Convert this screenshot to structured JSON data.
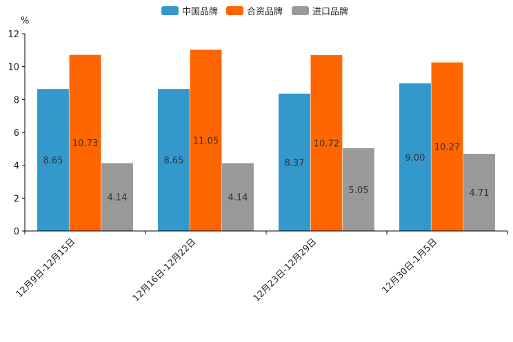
{
  "chart_data": {
    "type": "bar",
    "title": "",
    "ylabel": "%",
    "xlabel": "",
    "ylim": [
      0,
      12
    ],
    "yticks": [
      0,
      2,
      4,
      6,
      8,
      10,
      12
    ],
    "categories": [
      "12月9日-12月15日",
      "12月16日-12月22日",
      "12月23日-12月29日",
      "12月30日-1月5日"
    ],
    "series": [
      {
        "name": "中国品牌",
        "color": "#3399CC",
        "values": [
          8.65,
          8.65,
          8.37,
          9.0
        ],
        "labels": [
          "8.65",
          "8.65",
          "8.37",
          "9.00"
        ]
      },
      {
        "name": "合资品牌",
        "color": "#FF6600",
        "values": [
          10.73,
          11.05,
          10.72,
          10.27
        ],
        "labels": [
          "10.73",
          "11.05",
          "10.72",
          "10.27"
        ]
      },
      {
        "name": "进口品牌",
        "color": "#999999",
        "values": [
          4.14,
          4.14,
          5.05,
          4.71
        ],
        "labels": [
          "4.14",
          "4.14",
          "5.05",
          "4.71"
        ]
      }
    ],
    "legend_position": "top-center",
    "grid": false
  }
}
